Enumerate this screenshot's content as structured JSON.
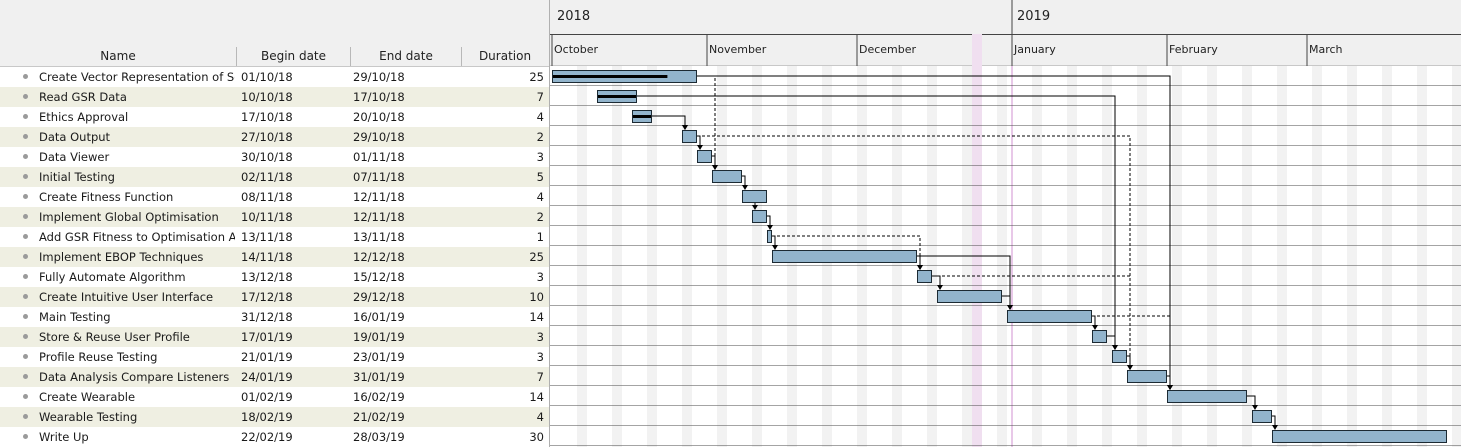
{
  "table": {
    "columns": {
      "name": "Name",
      "begin": "Begin date",
      "end": "End date",
      "duration": "Duration"
    },
    "tasks": [
      {
        "name": "Create Vector Representation of So...",
        "begin": "01/10/18",
        "end": "29/10/18",
        "duration": "25",
        "progress": 0.8
      },
      {
        "name": "Read GSR Data",
        "begin": "10/10/18",
        "end": "17/10/18",
        "duration": "7",
        "progress": 1.0
      },
      {
        "name": "Ethics Approval",
        "begin": "17/10/18",
        "end": "20/10/18",
        "duration": "4",
        "progress": 1.0
      },
      {
        "name": "Data Output",
        "begin": "27/10/18",
        "end": "29/10/18",
        "duration": "2",
        "progress": 0
      },
      {
        "name": "Data Viewer",
        "begin": "30/10/18",
        "end": "01/11/18",
        "duration": "3",
        "progress": 0
      },
      {
        "name": "Initial Testing",
        "begin": "02/11/18",
        "end": "07/11/18",
        "duration": "5",
        "progress": 0
      },
      {
        "name": "Create Fitness Function",
        "begin": "08/11/18",
        "end": "12/11/18",
        "duration": "4",
        "progress": 0
      },
      {
        "name": "Implement Global Optimisation",
        "begin": "10/11/18",
        "end": "12/11/18",
        "duration": "2",
        "progress": 0
      },
      {
        "name": "Add GSR Fitness to Optimisation Al...",
        "begin": "13/11/18",
        "end": "13/11/18",
        "duration": "1",
        "progress": 0
      },
      {
        "name": "Implement EBOP Techniques",
        "begin": "14/11/18",
        "end": "12/12/18",
        "duration": "25",
        "progress": 0
      },
      {
        "name": "Fully Automate Algorithm",
        "begin": "13/12/18",
        "end": "15/12/18",
        "duration": "3",
        "progress": 0
      },
      {
        "name": "Create Intuitive User Interface",
        "begin": "17/12/18",
        "end": "29/12/18",
        "duration": "10",
        "progress": 0
      },
      {
        "name": "Main Testing",
        "begin": "31/12/18",
        "end": "16/01/19",
        "duration": "14",
        "progress": 0
      },
      {
        "name": "Store & Reuse User Profile",
        "begin": "17/01/19",
        "end": "19/01/19",
        "duration": "3",
        "progress": 0
      },
      {
        "name": "Profile Reuse Testing",
        "begin": "21/01/19",
        "end": "23/01/19",
        "duration": "3",
        "progress": 0
      },
      {
        "name": "Data Analysis Compare Listeners",
        "begin": "24/01/19",
        "end": "31/01/19",
        "duration": "7",
        "progress": 0
      },
      {
        "name": "Create Wearable",
        "begin": "01/02/19",
        "end": "16/02/19",
        "duration": "14",
        "progress": 0
      },
      {
        "name": "Wearable Testing",
        "begin": "18/02/19",
        "end": "21/02/19",
        "duration": "4",
        "progress": 0
      },
      {
        "name": "Write Up",
        "begin": "22/02/19",
        "end": "28/03/19",
        "duration": "30",
        "progress": 0
      }
    ]
  },
  "timeline": {
    "years": [
      {
        "label": "2018",
        "date": "2018-10-01"
      },
      {
        "label": "2019",
        "date": "2019-01-01"
      }
    ],
    "months": [
      {
        "label": "October",
        "date": "2018-10-01"
      },
      {
        "label": "November",
        "date": "2018-11-01"
      },
      {
        "label": "December",
        "date": "2018-12-01"
      },
      {
        "label": "January",
        "date": "2019-01-01"
      },
      {
        "label": "February",
        "date": "2019-02-01"
      },
      {
        "label": "March",
        "date": "2019-03-01"
      }
    ],
    "holiday_start": "2018-12-24",
    "holiday_end": "2018-12-25",
    "colors": {
      "bar_fill": "#92b4cc",
      "bar_border": "#1c2a33",
      "progress": "#000000",
      "weekend": "#f2f2f2",
      "holiday": "#f0dff0",
      "today_line": "#e8c8e8",
      "row_line": "#4a4a4a"
    }
  },
  "dependencies": [
    {
      "from": 0,
      "to": 16,
      "style": "solid"
    },
    {
      "from": 1,
      "to": 14,
      "style": "solid"
    },
    {
      "from": 2,
      "to": 3,
      "style": "solid"
    },
    {
      "from": 2,
      "to": 3,
      "style": "dashed"
    },
    {
      "from": 0,
      "to": 5,
      "style": "dashed"
    },
    {
      "from": 3,
      "to": 4,
      "style": "solid"
    },
    {
      "from": 3,
      "to": 15,
      "style": "dashed"
    },
    {
      "from": 4,
      "to": 5,
      "style": "solid"
    },
    {
      "from": 5,
      "to": 6,
      "style": "solid"
    },
    {
      "from": 6,
      "to": 7,
      "style": "solid"
    },
    {
      "from": 7,
      "to": 8,
      "style": "solid"
    },
    {
      "from": 8,
      "to": 9,
      "style": "solid"
    },
    {
      "from": 8,
      "to": 10,
      "style": "dashed"
    },
    {
      "from": 9,
      "to": 10,
      "style": "solid"
    },
    {
      "from": 9,
      "to": 12,
      "style": "solid"
    },
    {
      "from": 10,
      "to": 11,
      "style": "solid"
    },
    {
      "from": 10,
      "to": 15,
      "style": "dashed"
    },
    {
      "from": 11,
      "to": 12,
      "style": "solid"
    },
    {
      "from": 12,
      "to": 13,
      "style": "solid"
    },
    {
      "from": 12,
      "to": 16,
      "style": "dashed"
    },
    {
      "from": 13,
      "to": 14,
      "style": "solid"
    },
    {
      "from": 14,
      "to": 15,
      "style": "solid"
    },
    {
      "from": 15,
      "to": 16,
      "style": "solid"
    },
    {
      "from": 16,
      "to": 17,
      "style": "solid"
    },
    {
      "from": 17,
      "to": 18,
      "style": "solid"
    }
  ]
}
